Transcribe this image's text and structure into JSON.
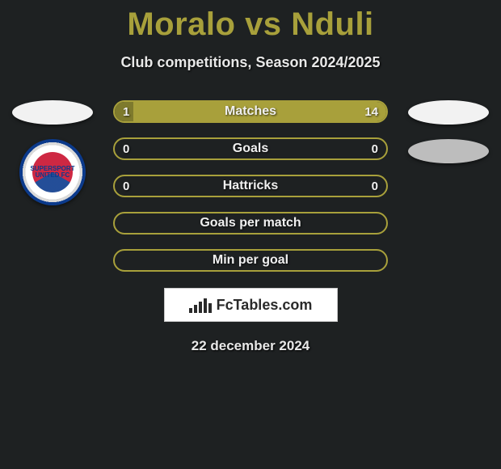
{
  "colors": {
    "background": "#1e2122",
    "accent": "#a8a03b",
    "accent_dark": "#7e7a2d",
    "text_light": "#e8e8e8",
    "white": "#ffffff",
    "grey": "#bdbdbd"
  },
  "header": {
    "title_left": "Moralo",
    "title_vs": "vs",
    "title_right": "Nduli",
    "subtitle": "Club competitions, Season 2024/2025"
  },
  "players": {
    "left": {
      "name": "Moralo",
      "club_badge_text": "SUPERSPORT UNITED FC"
    },
    "right": {
      "name": "Nduli"
    }
  },
  "stats": [
    {
      "label": "Matches",
      "left_value": "1",
      "right_value": "14",
      "left_pct": 6.7,
      "right_pct": 93.3,
      "left_color": "#7e7a2d",
      "right_color": "#a8a03b",
      "border_color": "#a8a03b"
    },
    {
      "label": "Goals",
      "left_value": "0",
      "right_value": "0",
      "left_pct": 0,
      "right_pct": 0,
      "left_color": "#a8a03b",
      "right_color": "#a8a03b",
      "border_color": "#a8a03b"
    },
    {
      "label": "Hattricks",
      "left_value": "0",
      "right_value": "0",
      "left_pct": 0,
      "right_pct": 0,
      "left_color": "#a8a03b",
      "right_color": "#a8a03b",
      "border_color": "#a8a03b"
    },
    {
      "label": "Goals per match",
      "left_value": "",
      "right_value": "",
      "left_pct": 0,
      "right_pct": 0,
      "left_color": "#a8a03b",
      "right_color": "#a8a03b",
      "border_color": "#a8a03b"
    },
    {
      "label": "Min per goal",
      "left_value": "",
      "right_value": "",
      "left_pct": 0,
      "right_pct": 0,
      "left_color": "#a8a03b",
      "right_color": "#a8a03b",
      "border_color": "#a8a03b"
    }
  ],
  "brand": {
    "text": "FcTables.com",
    "icon_bars": [
      6,
      10,
      14,
      18,
      12
    ]
  },
  "footer": {
    "date": "22 december 2024"
  }
}
